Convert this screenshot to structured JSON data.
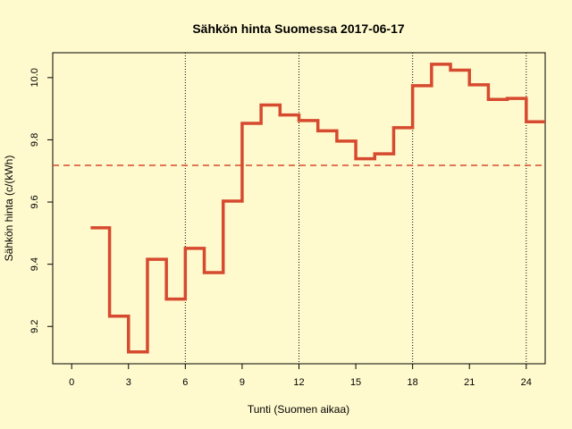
{
  "chart_data": {
    "type": "line",
    "style": "step",
    "title": "Sähkön hinta Suomessa 2017-06-17",
    "xlabel": "Tunti (Suomen aikaa)",
    "ylabel": "Sähkön hinta (c/(kWh)",
    "xlim": [
      -1,
      25
    ],
    "ylim": [
      9.08,
      10.08
    ],
    "xticks": [
      0,
      3,
      6,
      9,
      12,
      15,
      18,
      21,
      24
    ],
    "yticks": [
      9.2,
      9.4,
      9.6,
      9.8,
      10.0
    ],
    "ytick_labels": [
      "9.2",
      "9.4",
      "9.6",
      "9.8",
      "10.0"
    ],
    "vlines": [
      6,
      12,
      18,
      24
    ],
    "mean_line": 9.718,
    "series": [
      {
        "color": "#d64a2f",
        "x": [
          1,
          2,
          3,
          4,
          5,
          6,
          7,
          8,
          9,
          10,
          11,
          12,
          13,
          14,
          15,
          16,
          17,
          18,
          19,
          20,
          21,
          22,
          23,
          24
        ],
        "y": [
          9.517,
          9.233,
          9.118,
          9.416,
          9.288,
          9.451,
          9.373,
          9.603,
          9.853,
          9.912,
          9.88,
          9.862,
          9.829,
          9.796,
          9.739,
          9.755,
          9.839,
          9.974,
          10.043,
          10.024,
          9.977,
          9.93,
          9.933,
          9.858
        ]
      }
    ],
    "colors": {
      "series": "#d64a2f",
      "mean": "#d64a2f",
      "background": "#fffacd",
      "axis": "#000000"
    }
  }
}
